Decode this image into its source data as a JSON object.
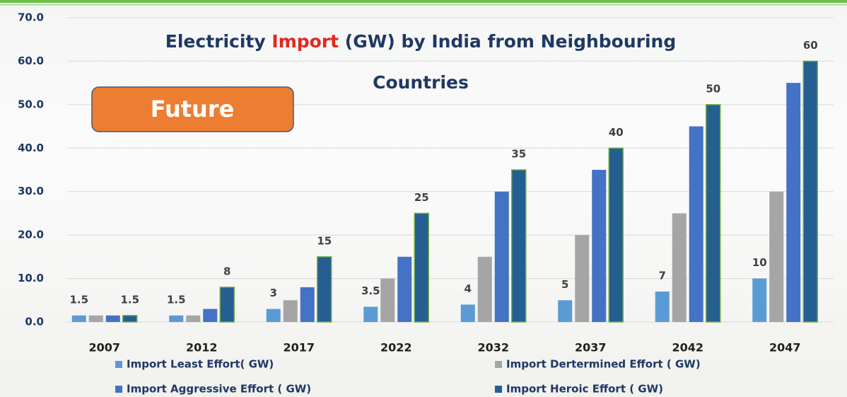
{
  "chart_data": {
    "type": "bar",
    "title": [
      {
        "text": "Electricity ",
        "color": "#1f3864"
      },
      {
        "text": "Import",
        "color": "#e8251f"
      },
      {
        "text": " (GW) by India from Neighbouring Countries",
        "color": "#1f3864"
      }
    ],
    "badge": "Future",
    "categories": [
      "2007",
      "2012",
      "2017",
      "2022",
      "2032",
      "2037",
      "2042",
      "2047"
    ],
    "series": [
      {
        "name": "Import Least Effort( GW)",
        "color": "#5b9bd5",
        "show_labels": true,
        "values": [
          1.5,
          1.5,
          3,
          3.5,
          4,
          5,
          7,
          10
        ]
      },
      {
        "name": "Import Dertermined Effort ( GW)",
        "color": "#a5a5a5",
        "show_labels": false,
        "values": [
          1.5,
          1.5,
          5,
          10,
          15,
          20,
          25,
          30
        ]
      },
      {
        "name": "Import Aggressive Effort ( GW)",
        "color": "#4472c4",
        "show_labels": false,
        "values": [
          1.5,
          3,
          8,
          15,
          30,
          35,
          45,
          55
        ]
      },
      {
        "name": "Import Heroic Effort ( GW)",
        "color": "#255e91",
        "show_labels": true,
        "values": [
          1.5,
          8,
          15,
          25,
          35,
          40,
          50,
          60
        ]
      }
    ],
    "ylim": [
      0,
      70
    ],
    "yticks": [
      {
        "value": 0,
        "label": "0.0"
      },
      {
        "value": 10,
        "label": "10.0"
      },
      {
        "value": 20,
        "label": "20.0"
      },
      {
        "value": 30,
        "label": "30.0"
      },
      {
        "value": 40,
        "label": "40.0"
      },
      {
        "value": 50,
        "label": "50.0"
      },
      {
        "value": 60,
        "label": "60.0"
      },
      {
        "value": 70,
        "label": "70.0"
      }
    ],
    "grid": true
  }
}
